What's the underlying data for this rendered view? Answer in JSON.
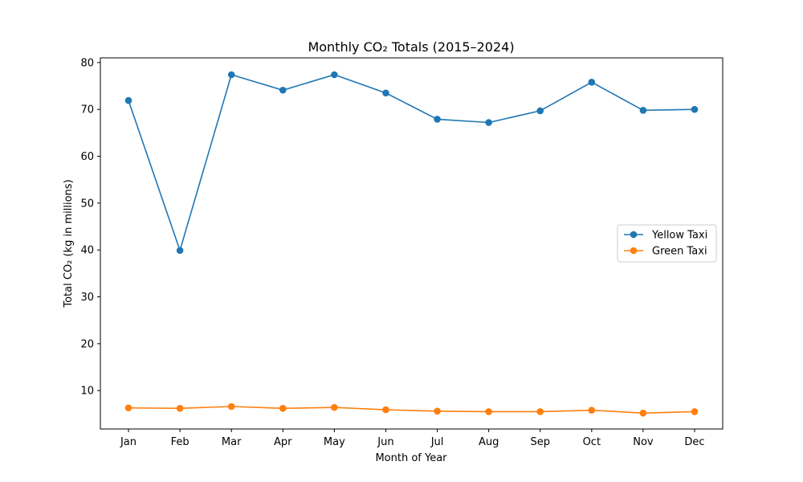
{
  "chart_data": {
    "type": "line",
    "title": "Monthly CO₂ Totals (2015–2024)",
    "xlabel": "Month of Year",
    "ylabel": "Total CO₂ (kg in millions)",
    "categories": [
      "Jan",
      "Feb",
      "Mar",
      "Apr",
      "May",
      "Jun",
      "Jul",
      "Aug",
      "Sep",
      "Oct",
      "Nov",
      "Dec"
    ],
    "ylim": [
      1.8,
      81
    ],
    "yticks": [
      "10",
      "20",
      "30",
      "40",
      "50",
      "60",
      "70",
      "80"
    ],
    "grid": false,
    "legend_position": "center-right",
    "series": [
      {
        "name": "Yellow Taxi",
        "color": "#1f77b4",
        "values": [
          71.9,
          39.9,
          77.4,
          74.1,
          77.4,
          73.5,
          67.9,
          67.2,
          69.7,
          75.8,
          69.8,
          70.0
        ]
      },
      {
        "name": "Green Taxi",
        "color": "#ff7f0e",
        "values": [
          6.3,
          6.2,
          6.6,
          6.2,
          6.4,
          5.9,
          5.6,
          5.5,
          5.5,
          5.8,
          5.2,
          5.5
        ]
      }
    ]
  }
}
